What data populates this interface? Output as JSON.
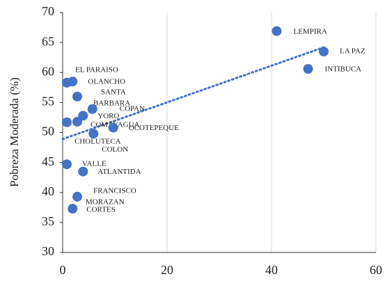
{
  "chart_data": {
    "type": "scatter",
    "ylabel": "Pobreza Moderada (%)",
    "x": [
      41,
      50,
      47,
      0.8,
      1.9,
      2.8,
      5.7,
      3.9,
      2.8,
      9.7,
      0.8,
      5.9,
      0.8,
      3.9,
      2.8,
      1.9
    ],
    "values": [
      66.9,
      63.5,
      60.6,
      58.3,
      58.5,
      56,
      53.9,
      52.8,
      51.8,
      50.8,
      51.7,
      49.8,
      44.7,
      43.5,
      39.3,
      37.3
    ],
    "labels": [
      [
        "LEMPIRA"
      ],
      [
        "LA PAZ"
      ],
      [
        "INTIBUCA"
      ],
      [
        "EL PARAISO"
      ],
      [
        "OLANCHO"
      ],
      [
        "SANTA",
        "BARBARA"
      ],
      [
        "COPAN"
      ],
      [
        "YORO"
      ],
      [
        "COMAYAGUA"
      ],
      [
        "OCOTEPEQUE"
      ],
      [
        "CHOLUTECA"
      ],
      [
        "COLON"
      ],
      [
        "VALLE"
      ],
      [
        "ATLANTIDA"
      ],
      [
        "FRANCISCO",
        "MORAZAN"
      ],
      [
        "CORTES"
      ]
    ],
    "color": "#4472c4",
    "trendline": {
      "x": [
        0,
        50
      ],
      "values": [
        48.9,
        64.2
      ]
    },
    "xlim": [
      0,
      60
    ],
    "xticks": [
      0,
      20,
      40,
      60
    ],
    "ylim": [
      30,
      70
    ],
    "yticks": [
      30,
      35,
      40,
      45,
      50,
      55,
      60,
      65,
      70
    ],
    "grid": true
  }
}
